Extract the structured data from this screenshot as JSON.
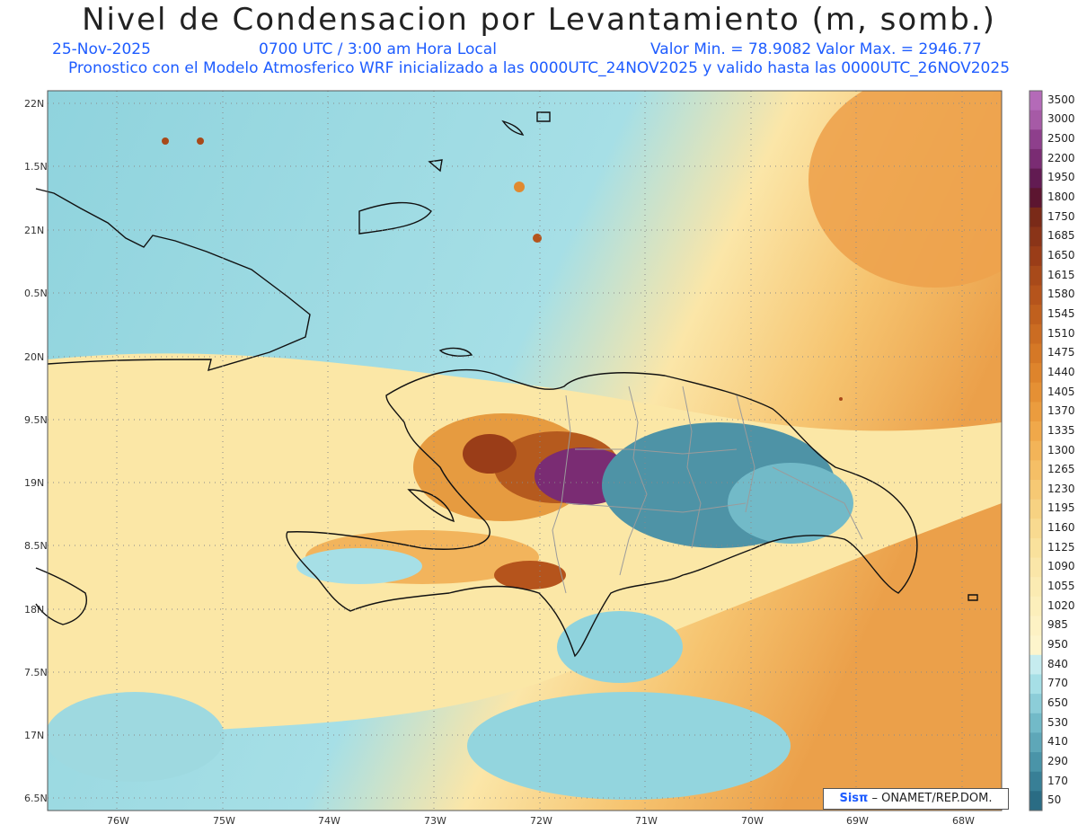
{
  "header": {
    "title": "Nivel de Condensacion por Levantamiento (m, somb.)",
    "date": "25-Nov-2025",
    "time": "0700 UTC / 3:00 am Hora Local",
    "minmax": "Valor Min. = 78.9082  Valor Max. = 2946.77",
    "forecast": "Pronostico con el Modelo Atmosferico WRF inicializado a las 0000UTC_24NOV2025 y valido hasta las  0000UTC_26NOV2025"
  },
  "axes": {
    "lat_labels": [
      "22N",
      "1.5N",
      "21N",
      "0.5N",
      "20N",
      "9.5N",
      "19N",
      "8.5N",
      "18N",
      "7.5N",
      "17N",
      "6.5N"
    ],
    "lon_labels": [
      "76W",
      "75W",
      "74W",
      "73W",
      "72W",
      "71W",
      "70W",
      "69W",
      "68W"
    ]
  },
  "colorbar": {
    "labels": [
      "3500",
      "3000",
      "2500",
      "2200",
      "1950",
      "1800",
      "1750",
      "1685",
      "1650",
      "1615",
      "1580",
      "1545",
      "1510",
      "1475",
      "1440",
      "1405",
      "1370",
      "1335",
      "1300",
      "1265",
      "1230",
      "1195",
      "1160",
      "1125",
      "1090",
      "1055",
      "1020",
      "985",
      "950",
      "840",
      "770",
      "650",
      "530",
      "410",
      "290",
      "170",
      "50"
    ],
    "colors": [
      "#b46ab8",
      "#a65aa6",
      "#8e3f8c",
      "#7a2c73",
      "#621b52",
      "#5c1530",
      "#7a2a18",
      "#8a3418",
      "#9a3d18",
      "#a84a1a",
      "#b5541c",
      "#c0601e",
      "#cb6c22",
      "#d57826",
      "#de842c",
      "#e59034",
      "#eb9c3e",
      "#f0a84a",
      "#f3b458",
      "#f5bf66",
      "#f6c974",
      "#f7d282",
      "#f8da90",
      "#f9e19c",
      "#fae6a8",
      "#fbebb2",
      "#fcefbb",
      "#fdf2c4",
      "#fdf5cc",
      "#c6ecef",
      "#a6dfe6",
      "#8ccdd8",
      "#72bac8",
      "#5ea7b8",
      "#4a94a8",
      "#387f96",
      "#2a6c84"
    ]
  },
  "credit": {
    "brand": "Sisπ",
    "text": "– ONAMET/REP.DOM."
  }
}
